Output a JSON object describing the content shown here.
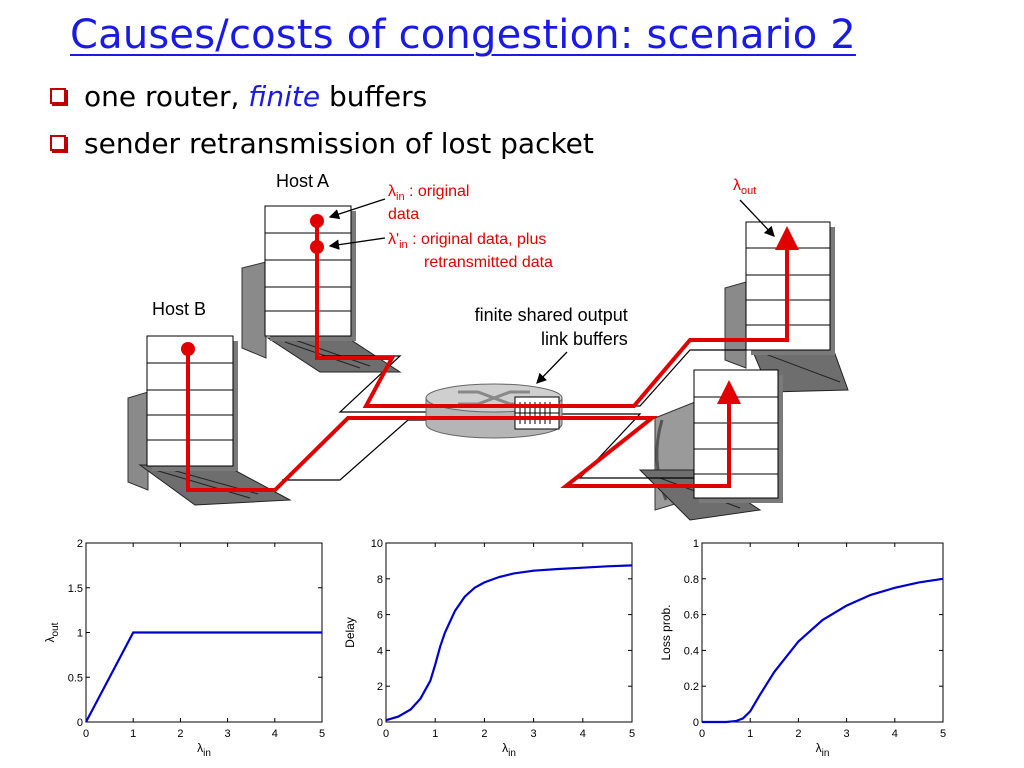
{
  "slide": {
    "title": "Causes/costs of congestion: scenario 2",
    "bullets": [
      {
        "prefix": "one router, ",
        "emphasis": "finite",
        "suffix": " buffers"
      },
      {
        "text": "sender retransmission of lost packet"
      }
    ]
  },
  "diagram": {
    "host_a": "Host A",
    "host_b": "Host B",
    "lambda_in_symbol": "λ",
    "lambda_in_sub": "in",
    "lambda_in_desc1": " : original",
    "lambda_in_desc2": "data",
    "lambda_prime_symbol": "λ'",
    "lambda_prime_sub": "in",
    "lambda_prime_desc1": " : original data, plus",
    "lambda_prime_desc2": "retransmitted data",
    "lambda_out_symbol": "λ",
    "lambda_out_sub": "out",
    "buffer_label1": "finite shared output",
    "buffer_label2": "link buffers",
    "colors": {
      "flow": "#e00000",
      "curve": "#0000cc",
      "title": "#1a1ae6"
    }
  },
  "chart_data": [
    {
      "type": "line",
      "ylabel_symbol": "λ",
      "ylabel_sub": "out",
      "xlabel_symbol": "λ",
      "xlabel_sub": "in",
      "xlim": [
        0,
        5
      ],
      "ylim": [
        0,
        2
      ],
      "xticks": [
        "0",
        "1",
        "2",
        "3",
        "4",
        "5"
      ],
      "yticks": [
        "0",
        "0.5",
        "1",
        "1.5",
        "2"
      ],
      "x": [
        0,
        1,
        2,
        3,
        4,
        5
      ],
      "y": [
        0,
        1,
        1,
        1,
        1,
        1
      ]
    },
    {
      "type": "line",
      "ylabel": "Delay",
      "xlabel_symbol": "λ",
      "xlabel_sub": "in",
      "xlim": [
        0,
        5
      ],
      "ylim": [
        0,
        10
      ],
      "xticks": [
        "0",
        "1",
        "2",
        "3",
        "4",
        "5"
      ],
      "yticks": [
        "0",
        "2",
        "4",
        "6",
        "8",
        "10"
      ],
      "x": [
        0,
        0.25,
        0.5,
        0.7,
        0.9,
        1.0,
        1.1,
        1.2,
        1.4,
        1.6,
        1.8,
        2.0,
        2.3,
        2.6,
        3.0,
        3.5,
        4.0,
        4.5,
        5.0
      ],
      "y": [
        0.1,
        0.3,
        0.7,
        1.3,
        2.3,
        3.2,
        4.2,
        5.0,
        6.2,
        7.0,
        7.5,
        7.8,
        8.1,
        8.3,
        8.45,
        8.55,
        8.62,
        8.7,
        8.75
      ]
    },
    {
      "type": "line",
      "ylabel": "Loss prob.",
      "xlabel_symbol": "λ",
      "xlabel_sub": "in",
      "xlim": [
        0,
        5
      ],
      "ylim": [
        0,
        1
      ],
      "xticks": [
        "0",
        "1",
        "2",
        "3",
        "4",
        "5"
      ],
      "yticks": [
        "0",
        "0.2",
        "0.4",
        "0.6",
        "0.8",
        "1"
      ],
      "x": [
        0,
        0.5,
        0.7,
        0.85,
        1.0,
        1.2,
        1.5,
        2.0,
        2.5,
        3.0,
        3.5,
        4.0,
        4.5,
        5.0
      ],
      "y": [
        0,
        0,
        0.005,
        0.02,
        0.06,
        0.15,
        0.28,
        0.45,
        0.57,
        0.65,
        0.71,
        0.75,
        0.78,
        0.8
      ]
    }
  ]
}
